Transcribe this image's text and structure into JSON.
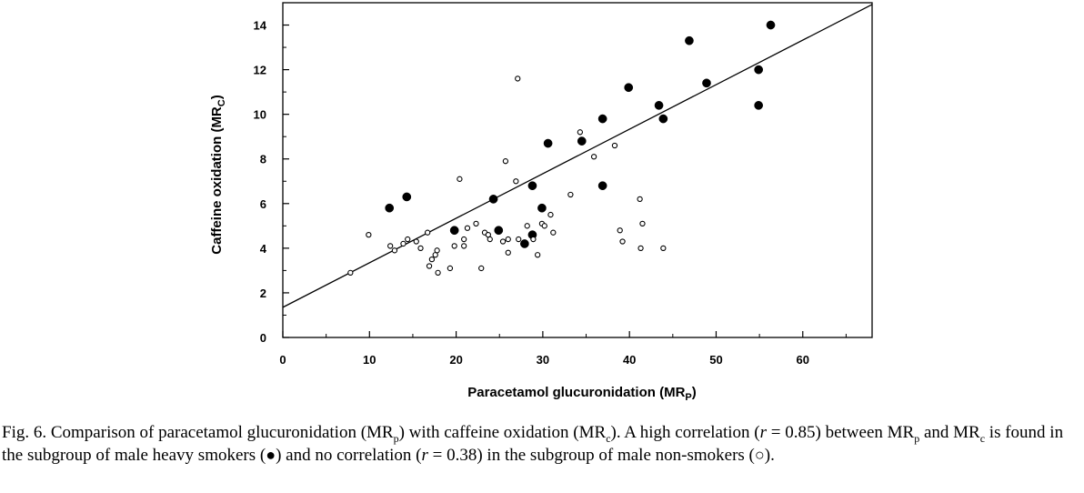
{
  "chart_data": {
    "type": "scatter",
    "xlabel": "Paracetamol glucuronidation (MR",
    "xlabel_sub": "P",
    "xlabel_end": ")",
    "ylabel": "Caffeine oxidation (MR",
    "ylabel_sub": "C",
    "ylabel_end": ")",
    "xlim": [
      0,
      68
    ],
    "ylim": [
      0,
      15
    ],
    "x_ticks": [
      0,
      10,
      20,
      30,
      40,
      50,
      60
    ],
    "y_ticks": [
      0,
      2,
      4,
      6,
      8,
      10,
      12,
      14
    ],
    "grid": false,
    "series": [
      {
        "marker": "filled-circle",
        "color": "#000000",
        "points": [
          [
            12.3,
            5.8
          ],
          [
            14.3,
            6.3
          ],
          [
            19.8,
            4.8
          ],
          [
            24.3,
            6.2
          ],
          [
            24.9,
            4.8
          ],
          [
            27.9,
            4.2
          ],
          [
            28.8,
            6.8
          ],
          [
            28.8,
            4.6
          ],
          [
            29.9,
            5.8
          ],
          [
            30.6,
            8.7
          ],
          [
            34.5,
            8.8
          ],
          [
            36.9,
            9.8
          ],
          [
            36.9,
            6.8
          ],
          [
            39.9,
            11.2
          ],
          [
            43.4,
            10.4
          ],
          [
            43.9,
            9.8
          ],
          [
            46.9,
            13.3
          ],
          [
            48.9,
            11.4
          ],
          [
            54.9,
            12.0
          ],
          [
            54.9,
            10.4
          ],
          [
            56.3,
            14.0
          ]
        ]
      },
      {
        "marker": "open-circle",
        "color": "#000000",
        "points": [
          [
            7.8,
            2.9
          ],
          [
            9.9,
            4.6
          ],
          [
            12.4,
            4.1
          ],
          [
            12.9,
            3.9
          ],
          [
            13.9,
            4.2
          ],
          [
            14.4,
            4.4
          ],
          [
            15.4,
            4.3
          ],
          [
            15.9,
            4.0
          ],
          [
            16.7,
            4.7
          ],
          [
            16.9,
            3.2
          ],
          [
            17.2,
            3.5
          ],
          [
            17.6,
            3.7
          ],
          [
            17.8,
            3.9
          ],
          [
            17.9,
            2.9
          ],
          [
            19.3,
            3.1
          ],
          [
            19.8,
            4.1
          ],
          [
            20.4,
            7.1
          ],
          [
            20.9,
            4.1
          ],
          [
            20.9,
            4.4
          ],
          [
            21.3,
            4.9
          ],
          [
            22.3,
            5.1
          ],
          [
            22.9,
            3.1
          ],
          [
            23.3,
            4.7
          ],
          [
            23.7,
            4.6
          ],
          [
            23.9,
            4.4
          ],
          [
            25.4,
            4.3
          ],
          [
            25.7,
            7.9
          ],
          [
            26.0,
            4.4
          ],
          [
            26.0,
            3.8
          ],
          [
            26.9,
            7.0
          ],
          [
            27.2,
            4.4
          ],
          [
            27.1,
            11.6
          ],
          [
            28.2,
            5.0
          ],
          [
            28.9,
            4.4
          ],
          [
            29.4,
            3.7
          ],
          [
            29.9,
            5.1
          ],
          [
            30.2,
            5.0
          ],
          [
            30.9,
            5.5
          ],
          [
            31.2,
            4.7
          ],
          [
            33.2,
            6.4
          ],
          [
            34.3,
            9.2
          ],
          [
            35.9,
            8.1
          ],
          [
            38.3,
            8.6
          ],
          [
            38.9,
            4.8
          ],
          [
            39.2,
            4.3
          ],
          [
            41.2,
            6.2
          ],
          [
            41.3,
            4.0
          ],
          [
            41.5,
            5.1
          ],
          [
            43.9,
            4.0
          ]
        ]
      }
    ],
    "fit_line": {
      "x": [
        0,
        68
      ],
      "y": [
        1.35,
        14.92
      ]
    }
  },
  "caption": {
    "fig": "Fig. 6.",
    "p1": " Comparison of paracetamol glucuronidation (MR",
    "p1_sub": "p",
    "p2": ") with caffeine oxidation (MR",
    "p2_sub": "c",
    "p3": "). A high correlation (",
    "r1": "r",
    "p4": " = 0.85) between MR",
    "p4_sub": "p",
    "p5": " and MR",
    "p5_sub": "c",
    "p6": " is found in the subgroup of male heavy smokers (",
    "filled_sym": "●",
    "p7": ") and no correlation (",
    "r2": "r",
    "p8": " = 0.38) in the subgroup of male non-smokers (",
    "open_sym": "○",
    "p9": ")."
  }
}
